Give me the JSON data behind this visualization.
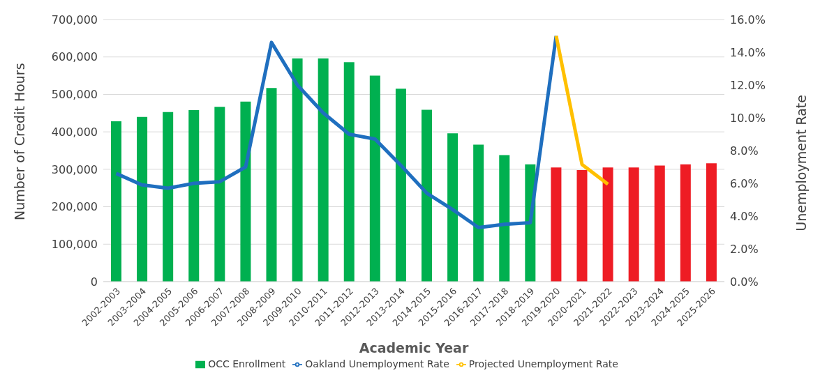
{
  "chart_data": {
    "type": "bar",
    "categories": [
      "2002-2003",
      "2003-2004",
      "2004-2005",
      "2005-2006",
      "2006-2007",
      "2007-2008",
      "2008-2009",
      "2009-2010",
      "2010-2011",
      "2011-2012",
      "2012-2013",
      "2013-2014",
      "2014-2015",
      "2015-2016",
      "2016-2017",
      "2017-2018",
      "2018-2019",
      "2019-2020",
      "2020-2021",
      "2021-2022",
      "2022-2023",
      "2023-2024",
      "2024-2025",
      "2025-2026"
    ],
    "xlabel": "Academic Year",
    "ylabel": "Number of Credit Hours",
    "y2label": "Unemployment Rate",
    "series": [
      {
        "name": "OCC Enrollment",
        "color": "#00b050",
        "colors": [
          "#00b050",
          "#00b050",
          "#00b050",
          "#00b050",
          "#00b050",
          "#00b050",
          "#00b050",
          "#00b050",
          "#00b050",
          "#00b050",
          "#00b050",
          "#00b050",
          "#00b050",
          "#00b050",
          "#00b050",
          "#00b050",
          "#00b050",
          "#ee1c24",
          "#ee1c24",
          "#ee1c24",
          "#ee1c24",
          "#ee1c24",
          "#ee1c24",
          "#ee1c24"
        ],
        "values": [
          428000,
          440000,
          453000,
          458000,
          467000,
          481000,
          517000,
          596000,
          596000,
          586000,
          550000,
          515000,
          459000,
          396000,
          366000,
          338000,
          313000,
          305000,
          298000,
          305000,
          305000,
          310000,
          313000,
          316000
        ]
      },
      {
        "name": "Oakland Unemployment Rate",
        "type": "line",
        "axis": "y2",
        "color": "#1f6fbf",
        "values": [
          6.6,
          5.9,
          5.7,
          6.0,
          6.1,
          7.0,
          14.6,
          12.0,
          10.3,
          9.0,
          8.7,
          7.1,
          5.4,
          4.4,
          3.3,
          3.5,
          3.6,
          15.0,
          null,
          null,
          null,
          null,
          null,
          null
        ]
      },
      {
        "name": "Projected Unemployment Rate",
        "type": "line",
        "axis": "y2",
        "color": "#ffc000",
        "values": [
          null,
          null,
          null,
          null,
          null,
          null,
          null,
          null,
          null,
          null,
          null,
          null,
          null,
          null,
          null,
          null,
          null,
          15.0,
          7.15,
          5.95,
          null,
          null,
          null,
          null
        ]
      }
    ],
    "ylim": [
      0,
      700000
    ],
    "yticks": [
      {
        "value": 0,
        "label": "0"
      },
      {
        "value": 100000,
        "label": "100,000"
      },
      {
        "value": 200000,
        "label": "200,000"
      },
      {
        "value": 300000,
        "label": "300,000"
      },
      {
        "value": 400000,
        "label": "400,000"
      },
      {
        "value": 500000,
        "label": "500,000"
      },
      {
        "value": 600000,
        "label": "600,000"
      },
      {
        "value": 700000,
        "label": "700,000"
      }
    ],
    "y2lim": [
      0,
      16
    ],
    "y2ticks": [
      {
        "value": 0,
        "label": "0.0%"
      },
      {
        "value": 2,
        "label": "2.0%"
      },
      {
        "value": 4,
        "label": "4.0%"
      },
      {
        "value": 6,
        "label": "6.0%"
      },
      {
        "value": 8,
        "label": "8.0%"
      },
      {
        "value": 10,
        "label": "10.0%"
      },
      {
        "value": 12,
        "label": "12.0%"
      },
      {
        "value": 14,
        "label": "14.0%"
      },
      {
        "value": 16,
        "label": "16.0%"
      }
    ],
    "grid": "y",
    "legend": "bottom",
    "marker": "none",
    "line_style": "solid"
  }
}
